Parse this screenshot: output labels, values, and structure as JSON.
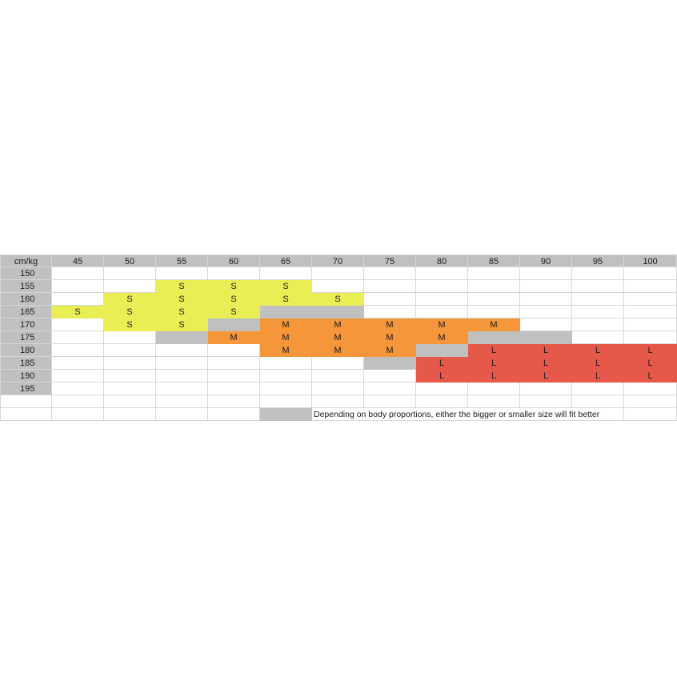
{
  "corner_label": "cm/kg",
  "weights": [
    "45",
    "50",
    "55",
    "60",
    "65",
    "70",
    "75",
    "80",
    "85",
    "90",
    "95",
    "100"
  ],
  "rows": [
    {
      "height": "150",
      "cells": [
        [
          "",
          ""
        ],
        [
          "",
          ""
        ],
        [
          "",
          ""
        ],
        [
          "",
          ""
        ],
        [
          "",
          ""
        ],
        [
          "",
          ""
        ],
        [
          "",
          ""
        ],
        [
          "",
          ""
        ],
        [
          "",
          ""
        ],
        [
          "",
          ""
        ],
        [
          "",
          ""
        ],
        [
          "",
          ""
        ]
      ]
    },
    {
      "height": "155",
      "cells": [
        [
          "",
          ""
        ],
        [
          "",
          ""
        ],
        [
          "S",
          "yellow"
        ],
        [
          "S",
          "yellow"
        ],
        [
          "S",
          "yellow"
        ],
        [
          "",
          ""
        ],
        [
          "",
          ""
        ],
        [
          "",
          ""
        ],
        [
          "",
          ""
        ],
        [
          "",
          ""
        ],
        [
          "",
          ""
        ],
        [
          "",
          ""
        ]
      ]
    },
    {
      "height": "160",
      "cells": [
        [
          "",
          ""
        ],
        [
          "S",
          "yellow"
        ],
        [
          "S",
          "yellow"
        ],
        [
          "S",
          "yellow"
        ],
        [
          "S",
          "yellow"
        ],
        [
          "S",
          "yellow"
        ],
        [
          "",
          ""
        ],
        [
          "",
          ""
        ],
        [
          "",
          ""
        ],
        [
          "",
          ""
        ],
        [
          "",
          ""
        ],
        [
          "",
          ""
        ]
      ]
    },
    {
      "height": "165",
      "cells": [
        [
          "S",
          "yellow"
        ],
        [
          "S",
          "yellow"
        ],
        [
          "S",
          "yellow"
        ],
        [
          "S",
          "yellow"
        ],
        [
          "",
          "gray"
        ],
        [
          "",
          "gray"
        ],
        [
          "",
          ""
        ],
        [
          "",
          ""
        ],
        [
          "",
          ""
        ],
        [
          "",
          ""
        ],
        [
          "",
          ""
        ],
        [
          "",
          ""
        ]
      ]
    },
    {
      "height": "170",
      "cells": [
        [
          "",
          ""
        ],
        [
          "S",
          "yellow"
        ],
        [
          "S",
          "yellow"
        ],
        [
          "",
          "gray"
        ],
        [
          "M",
          "orange"
        ],
        [
          "M",
          "orange"
        ],
        [
          "M",
          "orange"
        ],
        [
          "M",
          "orange"
        ],
        [
          "M",
          "orange"
        ],
        [
          "",
          ""
        ],
        [
          "",
          ""
        ],
        [
          "",
          ""
        ]
      ]
    },
    {
      "height": "175",
      "cells": [
        [
          "",
          ""
        ],
        [
          "",
          ""
        ],
        [
          "",
          "gray"
        ],
        [
          "M",
          "orange"
        ],
        [
          "M",
          "orange"
        ],
        [
          "M",
          "orange"
        ],
        [
          "M",
          "orange"
        ],
        [
          "M",
          "orange"
        ],
        [
          "",
          "gray"
        ],
        [
          "",
          "gray"
        ],
        [
          "",
          ""
        ],
        [
          "",
          ""
        ]
      ]
    },
    {
      "height": "180",
      "cells": [
        [
          "",
          ""
        ],
        [
          "",
          ""
        ],
        [
          "",
          ""
        ],
        [
          "",
          ""
        ],
        [
          "M",
          "orange"
        ],
        [
          "M",
          "orange"
        ],
        [
          "M",
          "orange"
        ],
        [
          "",
          "gray"
        ],
        [
          "L",
          "red"
        ],
        [
          "L",
          "red"
        ],
        [
          "L",
          "red"
        ],
        [
          "L",
          "red"
        ]
      ]
    },
    {
      "height": "185",
      "cells": [
        [
          "",
          ""
        ],
        [
          "",
          ""
        ],
        [
          "",
          ""
        ],
        [
          "",
          ""
        ],
        [
          "",
          ""
        ],
        [
          "",
          ""
        ],
        [
          "",
          "gray"
        ],
        [
          "L",
          "red"
        ],
        [
          "L",
          "red"
        ],
        [
          "L",
          "red"
        ],
        [
          "L",
          "red"
        ],
        [
          "L",
          "red"
        ]
      ]
    },
    {
      "height": "190",
      "cells": [
        [
          "",
          ""
        ],
        [
          "",
          ""
        ],
        [
          "",
          ""
        ],
        [
          "",
          ""
        ],
        [
          "",
          ""
        ],
        [
          "",
          ""
        ],
        [
          "",
          ""
        ],
        [
          "L",
          "red"
        ],
        [
          "L",
          "red"
        ],
        [
          "L",
          "red"
        ],
        [
          "L",
          "red"
        ],
        [
          "L",
          "red"
        ]
      ]
    },
    {
      "height": "195",
      "cells": [
        [
          "",
          ""
        ],
        [
          "",
          ""
        ],
        [
          "",
          ""
        ],
        [
          "",
          ""
        ],
        [
          "",
          ""
        ],
        [
          "",
          ""
        ],
        [
          "",
          ""
        ],
        [
          "",
          ""
        ],
        [
          "",
          ""
        ],
        [
          "",
          ""
        ],
        [
          "",
          ""
        ],
        [
          "",
          ""
        ]
      ]
    }
  ],
  "legend": {
    "swatch_color": "gray",
    "text": "Depending on body proportions, either the bigger or smaller size will fit better"
  },
  "colors": {
    "gray": "#c0c0c0",
    "yellow": "#e9ee55",
    "orange": "#f5963a",
    "red": "#e5584a"
  }
}
